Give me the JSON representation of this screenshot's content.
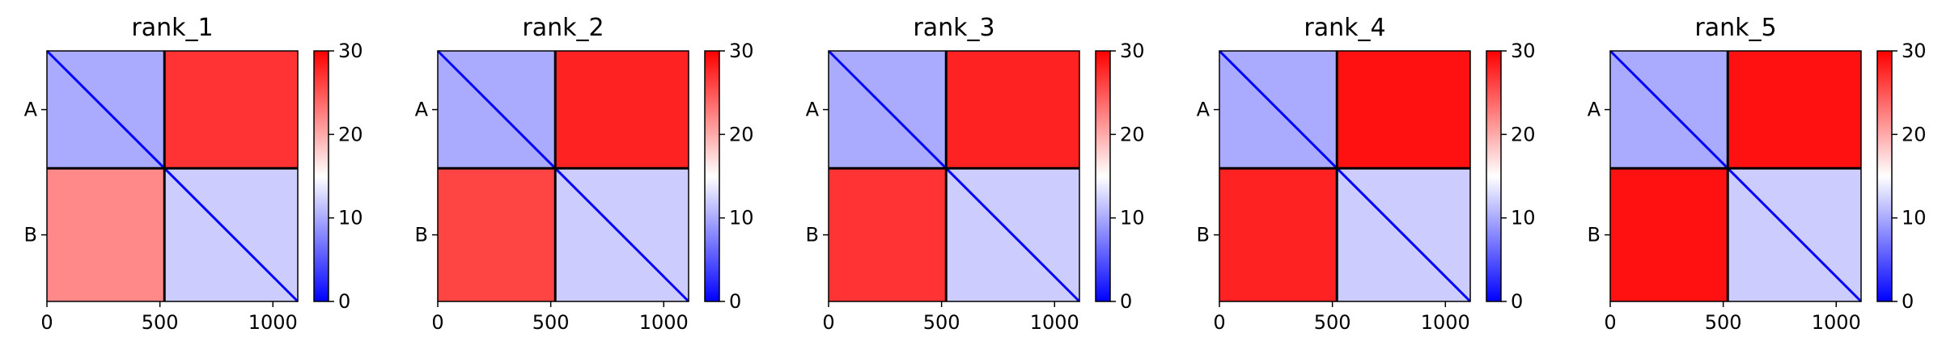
{
  "colors": {
    "low": "#0000ff",
    "mid": "#ffffff",
    "high": "#ff0000",
    "separator": "#000000"
  },
  "chart_data": [
    {
      "type": "heatmap",
      "title": "rank_1",
      "xlabel": "",
      "ylabel": "",
      "xlim": [
        0,
        1110
      ],
      "x_ticks": [
        0,
        500,
        1000
      ],
      "y_tick_labels": [
        "A",
        "B"
      ],
      "chain_boundary": 520,
      "colorbar": {
        "min": 0,
        "max": 30,
        "ticks": [
          0,
          10,
          20,
          30
        ]
      },
      "blocks": {
        "A-A": 10,
        "A-B": 27,
        "B-A": 22,
        "B-B": 12
      }
    },
    {
      "type": "heatmap",
      "title": "rank_2",
      "xlabel": "",
      "ylabel": "",
      "xlim": [
        0,
        1110
      ],
      "x_ticks": [
        0,
        500,
        1000
      ],
      "y_tick_labels": [
        "A",
        "B"
      ],
      "chain_boundary": 520,
      "colorbar": {
        "min": 0,
        "max": 30,
        "ticks": [
          0,
          10,
          20,
          30
        ]
      },
      "blocks": {
        "A-A": 10,
        "A-B": 28,
        "B-A": 26,
        "B-B": 12
      }
    },
    {
      "type": "heatmap",
      "title": "rank_3",
      "xlabel": "",
      "ylabel": "",
      "xlim": [
        0,
        1110
      ],
      "x_ticks": [
        0,
        500,
        1000
      ],
      "y_tick_labels": [
        "A",
        "B"
      ],
      "chain_boundary": 520,
      "colorbar": {
        "min": 0,
        "max": 30,
        "ticks": [
          0,
          10,
          20,
          30
        ]
      },
      "blocks": {
        "A-A": 10,
        "A-B": 28,
        "B-A": 27,
        "B-B": 12
      }
    },
    {
      "type": "heatmap",
      "title": "rank_4",
      "xlabel": "",
      "ylabel": "",
      "xlim": [
        0,
        1110
      ],
      "x_ticks": [
        0,
        500,
        1000
      ],
      "y_tick_labels": [
        "A",
        "B"
      ],
      "chain_boundary": 520,
      "colorbar": {
        "min": 0,
        "max": 30,
        "ticks": [
          0,
          10,
          20,
          30
        ]
      },
      "blocks": {
        "A-A": 10,
        "A-B": 29,
        "B-A": 28,
        "B-B": 12
      }
    },
    {
      "type": "heatmap",
      "title": "rank_5",
      "xlabel": "",
      "ylabel": "",
      "xlim": [
        0,
        1110
      ],
      "x_ticks": [
        0,
        500,
        1000
      ],
      "y_tick_labels": [
        "A",
        "B"
      ],
      "chain_boundary": 520,
      "colorbar": {
        "min": 0,
        "max": 30,
        "ticks": [
          0,
          10,
          20,
          30
        ]
      },
      "blocks": {
        "A-A": 10,
        "A-B": 29,
        "B-A": 29,
        "B-B": 12
      }
    }
  ]
}
